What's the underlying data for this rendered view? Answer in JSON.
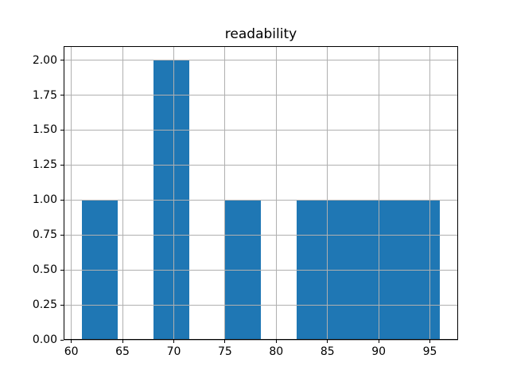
{
  "figure": {
    "title": "readability"
  },
  "chart_data": {
    "type": "bar",
    "subtype": "histogram",
    "title": "readability",
    "xlabel": "",
    "ylabel": "",
    "bin_edges": [
      61,
      64.5,
      68,
      71.5,
      75,
      78.5,
      82,
      85.5,
      89,
      92.5,
      96
    ],
    "counts": [
      1,
      0,
      2,
      0,
      1,
      0,
      1,
      1,
      1,
      1
    ],
    "xlim": [
      59.25,
      97.75
    ],
    "ylim": [
      0,
      2.1
    ],
    "x_ticks": [
      60,
      65,
      70,
      75,
      80,
      85,
      90,
      95
    ],
    "x_tick_labels": [
      "60",
      "65",
      "70",
      "75",
      "80",
      "85",
      "90",
      "95"
    ],
    "y_ticks": [
      0,
      0.25,
      0.5,
      0.75,
      1,
      1.25,
      1.5,
      1.75,
      2
    ],
    "y_tick_labels": [
      "0.00",
      "0.25",
      "0.50",
      "0.75",
      "1.00",
      "1.25",
      "1.50",
      "1.75",
      "2.00"
    ],
    "grid": true,
    "grid_over_bars": true,
    "legend": null,
    "colors": {
      "bar": "#1f77b4",
      "grid": "#b0b0b0",
      "frame": "#000000",
      "text": "#000000",
      "background": "#ffffff"
    }
  }
}
